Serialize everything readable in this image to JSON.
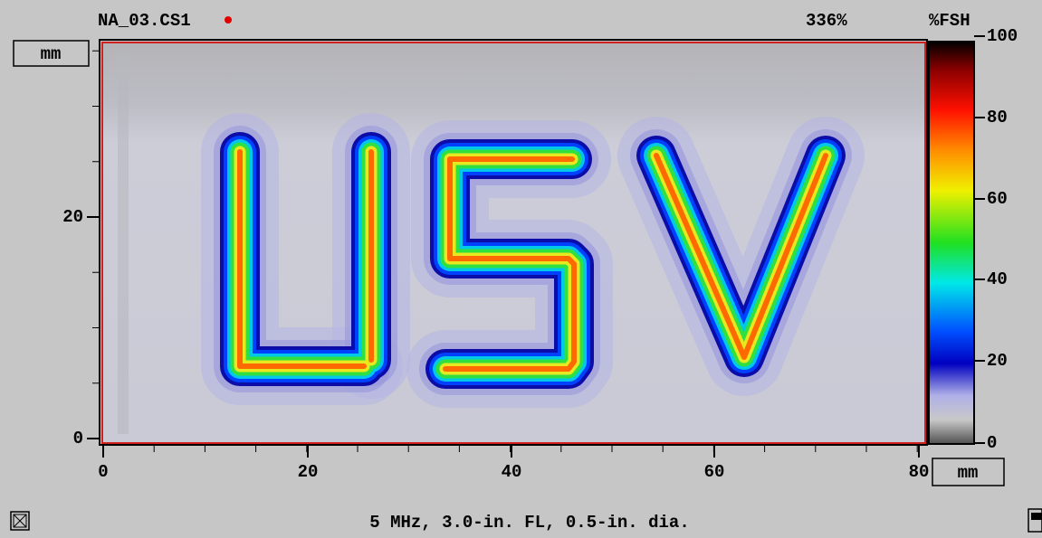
{
  "header": {
    "file": "NA_03.CS1",
    "gain": "336%",
    "unit": "%FSH"
  },
  "y_axis": {
    "unit": "mm",
    "ticks": [
      "20",
      "0"
    ]
  },
  "x_axis": {
    "unit": "mm",
    "ticks": [
      "0",
      "20",
      "40",
      "60",
      "80"
    ]
  },
  "colorbar": {
    "ticks": [
      "100",
      "80",
      "60",
      "40",
      "20",
      "0"
    ]
  },
  "footer": {
    "caption": "5 MHz, 3.0-in. FL, 0.5-in. dia."
  }
}
